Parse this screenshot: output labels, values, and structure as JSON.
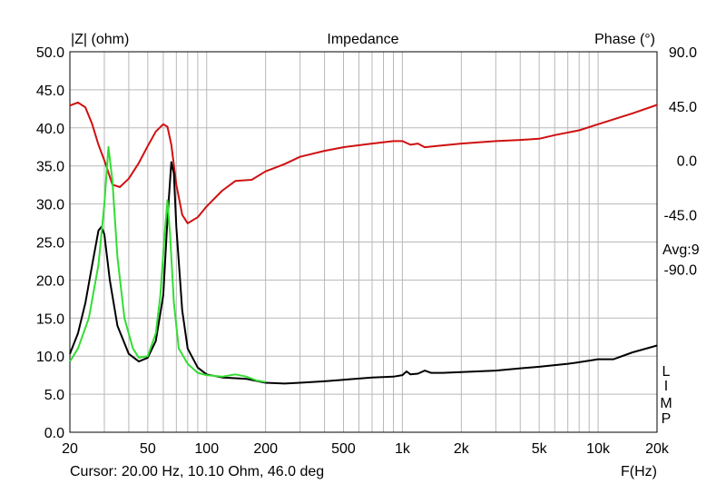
{
  "chart_data": {
    "type": "line",
    "title": "Impedance",
    "ylabel_left": "|Z| (ohm)",
    "ylabel_right": "Phase (°)",
    "xlabel": "F(Hz)",
    "x_scale": "log",
    "xlim": [
      20,
      20000
    ],
    "ylim_left": [
      0,
      50
    ],
    "ylim_right": [
      -225,
      90
    ],
    "x_ticks": [
      {
        "value": 20,
        "label": "20"
      },
      {
        "value": 50,
        "label": "50"
      },
      {
        "value": 100,
        "label": "100"
      },
      {
        "value": 200,
        "label": "200"
      },
      {
        "value": 500,
        "label": "500"
      },
      {
        "value": 1000,
        "label": "1k"
      },
      {
        "value": 2000,
        "label": "2k"
      },
      {
        "value": 5000,
        "label": "5k"
      },
      {
        "value": 10000,
        "label": "10k"
      },
      {
        "value": 20000,
        "label": "20k"
      }
    ],
    "y_ticks_left": [
      "50.0",
      "45.0",
      "40.0",
      "35.0",
      "30.0",
      "25.0",
      "20.0",
      "15.0",
      "10.0",
      "5.0",
      "0.0"
    ],
    "y_ticks_right": [
      {
        "value": 90,
        "label": "90.0"
      },
      {
        "value": 45,
        "label": "45.0"
      },
      {
        "value": 0,
        "label": "0.0"
      },
      {
        "value": -45,
        "label": "-45.0"
      },
      {
        "value": -90,
        "label": "-90.0"
      }
    ],
    "grid": true,
    "annotations": [
      "Avg:9"
    ],
    "side_label": [
      "L",
      "I",
      "M",
      "P"
    ],
    "cursor_text": "Cursor: 20.00 Hz, 10.10 Ohm, 46.0 deg",
    "series": [
      {
        "axis": "right",
        "color": "#d01010",
        "points": [
          [
            20,
            45.5
          ],
          [
            22,
            48
          ],
          [
            24,
            44
          ],
          [
            26,
            30
          ],
          [
            28,
            13
          ],
          [
            30,
            0
          ],
          [
            33,
            -20
          ],
          [
            36,
            -22
          ],
          [
            40,
            -15
          ],
          [
            45,
            -2
          ],
          [
            50,
            12
          ],
          [
            55,
            24
          ],
          [
            60,
            30
          ],
          [
            63,
            28
          ],
          [
            66,
            13
          ],
          [
            70,
            -20
          ],
          [
            75,
            -45
          ],
          [
            80,
            -52
          ],
          [
            90,
            -47
          ],
          [
            100,
            -38
          ],
          [
            120,
            -25
          ],
          [
            140,
            -17
          ],
          [
            170,
            -16
          ],
          [
            200,
            -9
          ],
          [
            250,
            -3
          ],
          [
            300,
            3
          ],
          [
            400,
            8
          ],
          [
            500,
            11
          ],
          [
            700,
            14
          ],
          [
            900,
            16
          ],
          [
            1000,
            16
          ],
          [
            1100,
            13
          ],
          [
            1200,
            14
          ],
          [
            1300,
            11
          ],
          [
            1500,
            12
          ],
          [
            2000,
            14
          ],
          [
            3000,
            16
          ],
          [
            4000,
            17
          ],
          [
            5000,
            18
          ],
          [
            6000,
            21
          ],
          [
            8000,
            25
          ],
          [
            10000,
            30
          ],
          [
            15000,
            39
          ],
          [
            20000,
            46
          ]
        ]
      },
      {
        "axis": "left",
        "color": "#000000",
        "points": [
          [
            20,
            10.3
          ],
          [
            22,
            13
          ],
          [
            24,
            17
          ],
          [
            26,
            22
          ],
          [
            28,
            26.5
          ],
          [
            29,
            27
          ],
          [
            30,
            26
          ],
          [
            32,
            20
          ],
          [
            35,
            14
          ],
          [
            40,
            10.3
          ],
          [
            45,
            9.3
          ],
          [
            50,
            9.8
          ],
          [
            55,
            12
          ],
          [
            60,
            18
          ],
          [
            63,
            28
          ],
          [
            66,
            35.5
          ],
          [
            68,
            34
          ],
          [
            70,
            27
          ],
          [
            75,
            16
          ],
          [
            80,
            11
          ],
          [
            90,
            8.5
          ],
          [
            100,
            7.6
          ],
          [
            120,
            7.2
          ],
          [
            140,
            7.1
          ],
          [
            160,
            7
          ],
          [
            200,
            6.5
          ],
          [
            250,
            6.4
          ],
          [
            300,
            6.5
          ],
          [
            400,
            6.7
          ],
          [
            500,
            6.9
          ],
          [
            700,
            7.2
          ],
          [
            900,
            7.3
          ],
          [
            1000,
            7.5
          ],
          [
            1050,
            8
          ],
          [
            1100,
            7.6
          ],
          [
            1200,
            7.7
          ],
          [
            1300,
            8.1
          ],
          [
            1400,
            7.8
          ],
          [
            1600,
            7.8
          ],
          [
            2000,
            7.9
          ],
          [
            3000,
            8.1
          ],
          [
            4000,
            8.4
          ],
          [
            5000,
            8.6
          ],
          [
            7000,
            9
          ],
          [
            8000,
            9.2
          ],
          [
            10000,
            9.6
          ],
          [
            12000,
            9.6
          ],
          [
            15000,
            10.5
          ],
          [
            20000,
            11.4
          ]
        ]
      },
      {
        "axis": "left",
        "color": "#33dd33",
        "points": [
          [
            20,
            9.3
          ],
          [
            22,
            11
          ],
          [
            25,
            15
          ],
          [
            28,
            22
          ],
          [
            30,
            30
          ],
          [
            31.5,
            37.5
          ],
          [
            33,
            33
          ],
          [
            35,
            23
          ],
          [
            38,
            15
          ],
          [
            42,
            11
          ],
          [
            45,
            9.8
          ],
          [
            50,
            10
          ],
          [
            55,
            13
          ],
          [
            58,
            18
          ],
          [
            61,
            26
          ],
          [
            63,
            30.5
          ],
          [
            65,
            26
          ],
          [
            68,
            17
          ],
          [
            72,
            11
          ],
          [
            80,
            9
          ],
          [
            90,
            7.8
          ],
          [
            100,
            7.5
          ],
          [
            120,
            7.3
          ],
          [
            140,
            7.6
          ],
          [
            160,
            7.3
          ],
          [
            180,
            6.8
          ],
          [
            200,
            6.6
          ]
        ]
      }
    ]
  }
}
